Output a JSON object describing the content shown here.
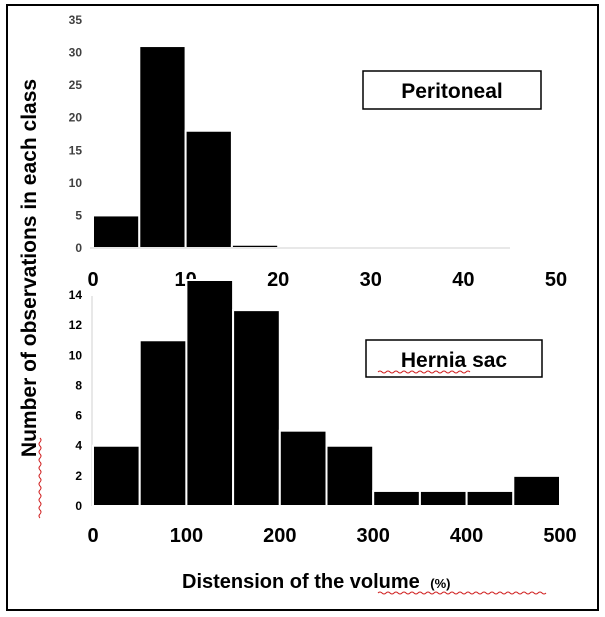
{
  "chart_data": [
    {
      "type": "bar",
      "panel": "top",
      "title": "Peritoneal",
      "categories": [
        "0-5",
        "5-10",
        "10-15",
        "15-20",
        "20-25",
        "25-30",
        "30-35",
        "35-40",
        "40-45"
      ],
      "values": [
        5,
        31,
        18,
        0.5,
        0,
        0,
        0,
        0,
        0
      ],
      "bin_edges": [
        0,
        5,
        10,
        15,
        20,
        25,
        30,
        35,
        40,
        45
      ],
      "xlim": [
        0,
        50
      ],
      "ylim": [
        0,
        35
      ],
      "xticks": [
        0,
        10,
        20,
        30,
        40,
        50
      ],
      "yticks": [
        0,
        5,
        10,
        15,
        20,
        25,
        30,
        35
      ],
      "legend_position": "top-right"
    },
    {
      "type": "bar",
      "panel": "bottom",
      "title": "Hernia sac",
      "categories": [
        "0-50",
        "50-100",
        "100-150",
        "150-200",
        "200-250",
        "250-300",
        "300-350",
        "350-400",
        "400-450",
        "450-500"
      ],
      "values": [
        4,
        11,
        15,
        13,
        5,
        4,
        1,
        1,
        1,
        2
      ],
      "bin_edges": [
        0,
        50,
        100,
        150,
        200,
        250,
        300,
        350,
        400,
        450,
        500
      ],
      "xlim": [
        0,
        500
      ],
      "ylim": [
        0,
        15
      ],
      "xticks": [
        0,
        100,
        200,
        300,
        400,
        500
      ],
      "yticks": [
        0,
        2,
        4,
        6,
        8,
        10,
        12,
        14
      ],
      "legend_position": "center-right"
    }
  ],
  "shared": {
    "ylabel": "Number of observations in each class",
    "xlabel": "Distension of the volume",
    "xlabel_unit": "(%)",
    "bar_color": "#000000",
    "bar_edge_color": "#ffffff",
    "spellcheck_underline_color": "#d02020"
  }
}
